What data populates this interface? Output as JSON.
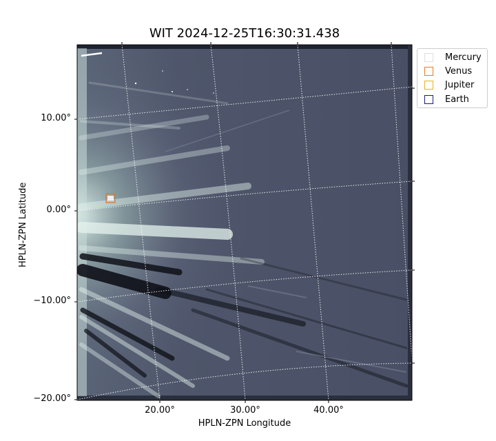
{
  "figure": {
    "title": "WIT 2024-12-25T16:30:31.438",
    "xlabel": "HPLN-ZPN Longitude",
    "ylabel": "HPLN-ZPN Latitude"
  },
  "axes": {
    "x_ticks": [
      "20.00°",
      "30.00°",
      "40.00°"
    ],
    "y_ticks": [
      "10.00°",
      "0.00°",
      "−10.00°",
      "−20.00°"
    ]
  },
  "legend": {
    "placement": "upper-right outside axes",
    "items": [
      {
        "label": "Mercury",
        "color": "#e0e0e0"
      },
      {
        "label": "Venus",
        "color": "#e07a2a"
      },
      {
        "label": "Jupiter",
        "color": "#e8b020"
      },
      {
        "label": "Earth",
        "color": "#1a1a7a"
      }
    ]
  },
  "markers": [
    {
      "name": "Venus",
      "color": "#e07a2a"
    }
  ],
  "colors": {
    "background": "#4a5066",
    "bright_streak": "#d8ece6",
    "grid": "#ffffff"
  }
}
